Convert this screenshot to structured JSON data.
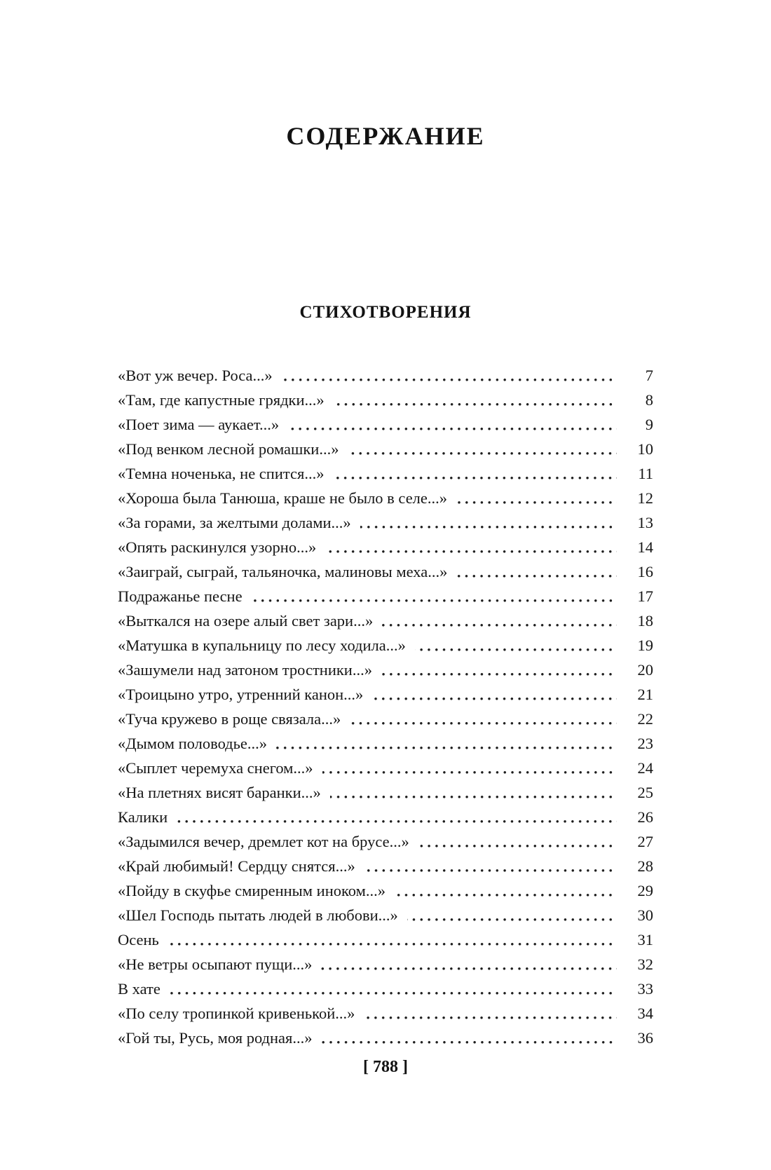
{
  "title": "СОДЕРЖАНИЕ",
  "section": {
    "heading": "СТИХОТВОРЕНИЯ"
  },
  "toc": {
    "entries": [
      {
        "title": "«Вот уж вечер. Роса...»",
        "page": "7"
      },
      {
        "title": "«Там, где капустные грядки...»",
        "page": "8"
      },
      {
        "title": "«Поет зима — аукает...»",
        "page": "9"
      },
      {
        "title": "«Под венком лесной ромашки...»",
        "page": "10"
      },
      {
        "title": "«Темна ноченька, не спится...»",
        "page": "11"
      },
      {
        "title": "«Хороша была Танюша, краше не было в селе...»",
        "page": "12"
      },
      {
        "title": "«За горами, за желтыми долами...»",
        "page": "13"
      },
      {
        "title": "«Опять раскинулся узорно...»",
        "page": "14"
      },
      {
        "title": "«Заиграй, сыграй, тальяночка, малиновы меха...»",
        "page": "16"
      },
      {
        "title": "Подражанье песне",
        "page": "17"
      },
      {
        "title": "«Выткался на озере алый свет зари...»",
        "page": "18"
      },
      {
        "title": "«Матушка в купальницу по лесу ходила...»",
        "page": "19"
      },
      {
        "title": "«Зашумели над затоном тростники...»",
        "page": "20"
      },
      {
        "title": "«Троицыно утро, утренний канон...»",
        "page": "21"
      },
      {
        "title": "«Туча кружево в роще связала...»",
        "page": "22"
      },
      {
        "title": "«Дымом половодье...»",
        "page": "23"
      },
      {
        "title": "«Сыплет черемуха снегом...»",
        "page": "24"
      },
      {
        "title": "«На плетнях висят баранки...»",
        "page": "25"
      },
      {
        "title": "Калики",
        "page": "26"
      },
      {
        "title": "«Задымился вечер, дремлет кот на брусе...»",
        "page": "27"
      },
      {
        "title": "«Край любимый! Сердцу снятся...»",
        "page": "28"
      },
      {
        "title": "«Пойду в скуфье смиренным иноком...»",
        "page": "29"
      },
      {
        "title": "«Шел Господь пытать людей в любови...»",
        "page": "30"
      },
      {
        "title": "Осень",
        "page": "31"
      },
      {
        "title": "«Не ветры осыпают пущи...»",
        "page": "32"
      },
      {
        "title": "В хате",
        "page": "33"
      },
      {
        "title": "«По селу тропинкой кривенькой...»",
        "page": "34"
      },
      {
        "title": "«Гой ты, Русь, моя родная...»",
        "page": "36"
      }
    ]
  },
  "footer": {
    "page_label": "[ 788 ]"
  },
  "colors": {
    "text": "#161616",
    "background": "#ffffff",
    "dot_leader": "#1d1d1d"
  }
}
